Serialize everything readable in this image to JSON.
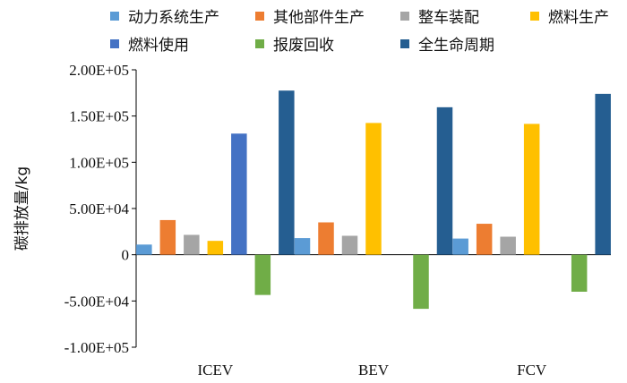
{
  "chart_data": {
    "type": "bar",
    "title": "",
    "xlabel": "",
    "ylabel": "碳排放量/kg",
    "ylim": [
      -100000,
      200000
    ],
    "yticks": [
      200000,
      150000,
      100000,
      50000,
      0,
      -50000,
      -100000
    ],
    "ytick_labels": [
      "2.00E+05",
      "1.50E+05",
      "1.00E+05",
      "5.00E+04",
      "0",
      "-5.00E+04",
      "-1.00E+05"
    ],
    "categories": [
      "ICEV",
      "BEV",
      "FCV"
    ],
    "grid": false,
    "legend_position": "top",
    "series": [
      {
        "name": "动力系统生产",
        "color": "#5B9BD5",
        "values": [
          11000,
          18000,
          17500
        ]
      },
      {
        "name": "其他部件生产",
        "color": "#ED7D31",
        "values": [
          37500,
          35000,
          33500
        ]
      },
      {
        "name": "整车装配",
        "color": "#A5A5A5",
        "values": [
          21500,
          20500,
          19500
        ]
      },
      {
        "name": "燃料生产",
        "color": "#FFC000",
        "values": [
          15000,
          142500,
          141500
        ]
      },
      {
        "name": "燃料使用",
        "color": "#4472C4",
        "values": [
          131000,
          0,
          0
        ]
      },
      {
        "name": "报废回收",
        "color": "#70AD47",
        "values": [
          -43500,
          -58500,
          -40000
        ]
      },
      {
        "name": "全生命周期",
        "color": "#255E91",
        "values": [
          177500,
          159500,
          174000
        ]
      }
    ]
  }
}
